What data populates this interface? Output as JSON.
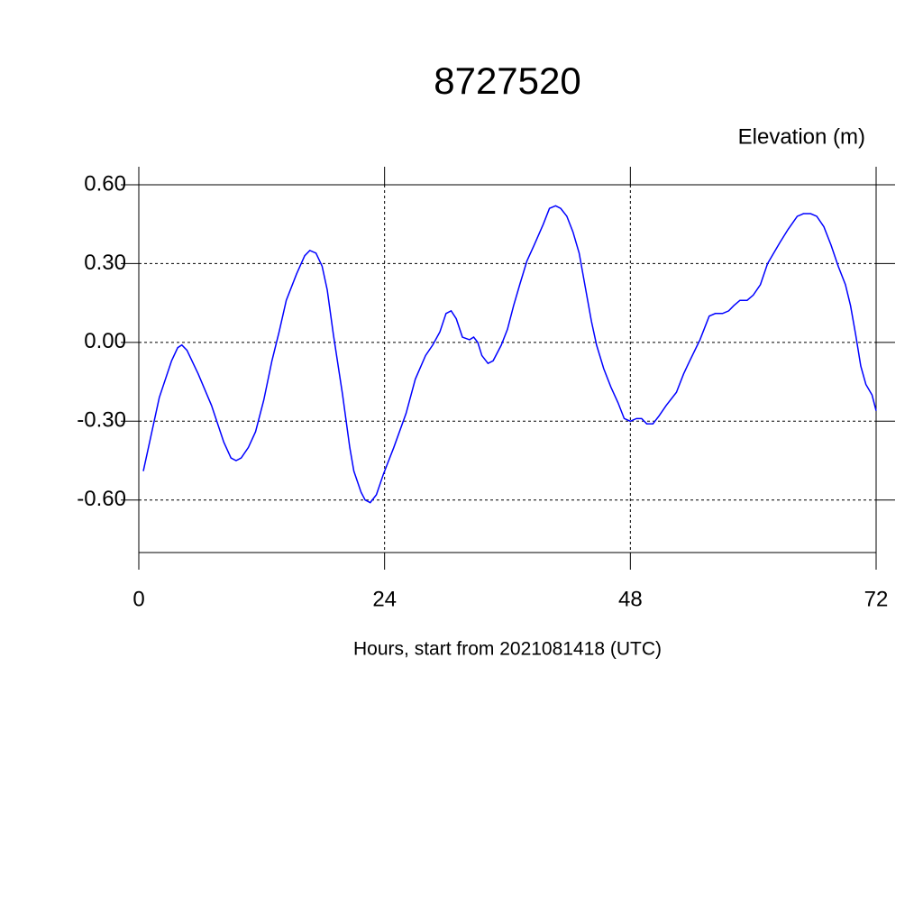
{
  "chart_data": {
    "type": "line",
    "title": "8727520",
    "subtitle": "Elevation (m)",
    "x_label": "Hours, start from 2021081418 (UTC)",
    "xlim": [
      0,
      72
    ],
    "xticks": [
      0,
      24,
      48,
      72
    ],
    "ylim": [
      -0.8,
      0.6
    ],
    "yticks": [
      {
        "value": -0.6,
        "label": "-0.60"
      },
      {
        "value": -0.3,
        "label": "-0.30"
      },
      {
        "value": 0,
        "label": "0.00"
      },
      {
        "value": 0.3,
        "label": "0.30"
      },
      {
        "value": 0.6,
        "label": "0.60"
      }
    ],
    "grid": true,
    "series": [
      {
        "color": "#0000ff",
        "x": [
          0.44,
          2.0,
          3.2,
          3.8,
          4.2,
          4.7,
          5.8,
          7.1,
          8.3,
          9.0,
          9.5,
          10.0,
          10.7,
          11.4,
          12.2,
          13.0,
          13.7,
          14.4,
          15.4,
          16.2,
          16.7,
          17.3,
          17.9,
          18.4,
          19.0,
          19.9,
          20.6,
          21.0,
          21.7,
          22.1,
          22.6,
          23.2,
          23.9,
          24.9,
          26.1,
          27.0,
          28.0,
          28.7,
          29.4,
          30.0,
          30.5,
          31.0,
          31.6,
          32.3,
          32.7,
          33.1,
          33.5,
          34.1,
          34.6,
          35.4,
          36.0,
          36.6,
          37.2,
          37.9,
          38.6,
          39.5,
          40.1,
          40.7,
          41.2,
          41.8,
          42.4,
          43.0,
          43.6,
          44.2,
          44.7,
          45.4,
          46.1,
          46.8,
          47.4,
          48.0,
          48.6,
          49.1,
          49.6,
          50.2,
          50.8,
          51.5,
          52.5,
          53.2,
          53.8,
          54.8,
          55.7,
          56.3,
          57.0,
          57.6,
          58.1,
          58.7,
          59.4,
          60.0,
          60.7,
          61.4,
          62.0,
          62.6,
          63.4,
          64.3,
          64.9,
          65.6,
          66.2,
          66.9,
          67.6,
          68.3,
          69.0,
          69.5,
          70.0,
          70.5,
          71.0,
          71.6,
          72.0
        ],
        "values": [
          -0.49,
          -0.21,
          -0.07,
          -0.02,
          -0.01,
          -0.03,
          -0.12,
          -0.24,
          -0.38,
          -0.44,
          -0.45,
          -0.44,
          -0.4,
          -0.34,
          -0.22,
          -0.07,
          0.04,
          0.16,
          0.26,
          0.33,
          0.35,
          0.34,
          0.29,
          0.2,
          0.03,
          -0.2,
          -0.4,
          -0.49,
          -0.57,
          -0.6,
          -0.61,
          -0.58,
          -0.5,
          -0.4,
          -0.27,
          -0.14,
          -0.05,
          -0.01,
          0.04,
          0.11,
          0.12,
          0.09,
          0.02,
          0.01,
          0.02,
          0.0,
          -0.05,
          -0.08,
          -0.07,
          -0.01,
          0.05,
          0.14,
          0.22,
          0.31,
          0.37,
          0.45,
          0.51,
          0.52,
          0.51,
          0.48,
          0.42,
          0.34,
          0.21,
          0.08,
          -0.01,
          -0.1,
          -0.17,
          -0.23,
          -0.29,
          -0.3,
          -0.29,
          -0.29,
          -0.31,
          -0.31,
          -0.28,
          -0.24,
          -0.19,
          -0.12,
          -0.07,
          0.01,
          0.1,
          0.11,
          0.11,
          0.12,
          0.14,
          0.16,
          0.16,
          0.18,
          0.22,
          0.3,
          0.34,
          0.38,
          0.43,
          0.48,
          0.49,
          0.49,
          0.48,
          0.44,
          0.37,
          0.29,
          0.22,
          0.14,
          0.03,
          -0.09,
          -0.16,
          -0.2,
          -0.26
        ]
      }
    ]
  }
}
